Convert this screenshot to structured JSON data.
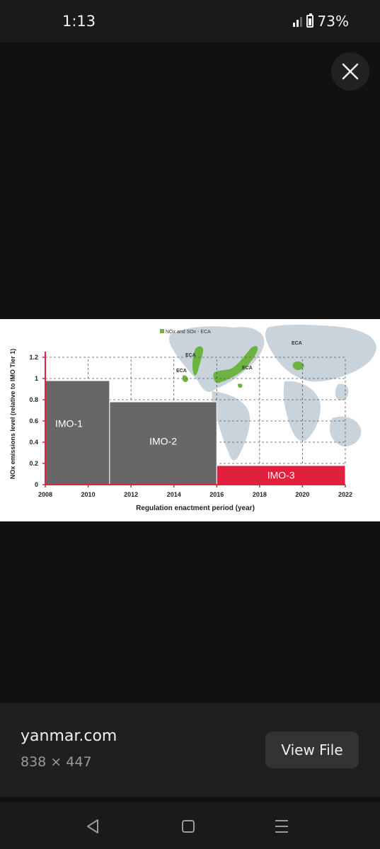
{
  "status_bar": {
    "time": "1:13",
    "battery_percent": "73%",
    "battery_level": 0.73
  },
  "viewer": {
    "close_icon": "close-icon",
    "source": "yanmar.com",
    "dimensions": "838 × 447",
    "view_file_label": "View File"
  },
  "chart_data": {
    "type": "bar",
    "xlabel": "Regulation enactment period (year)",
    "ylabel": "NOx emissions level (relative to IMO Tier 1)",
    "xlim": [
      2008,
      2022
    ],
    "ylim": [
      0,
      1.2
    ],
    "x_ticks": [
      "2008",
      "2010",
      "2012",
      "2014",
      "2016",
      "2018",
      "2020",
      "2022"
    ],
    "y_ticks": [
      "0",
      "0.2",
      "0.4",
      "0.6",
      "0.8",
      "1",
      "1.2"
    ],
    "grid": "dashed",
    "bars": [
      {
        "label": "IMO-1",
        "x_start": 2008,
        "x_end": 2011,
        "value": 0.98,
        "color": "#676767"
      },
      {
        "label": "IMO-2",
        "x_start": 2011,
        "x_end": 2016,
        "value": 0.78,
        "color": "#676767"
      },
      {
        "label": "IMO-3",
        "x_start": 2016,
        "x_end": 2022,
        "value": 0.18,
        "color": "#e0203c"
      }
    ],
    "map_legend": "NOx and SOx - ECA",
    "map_labels": [
      "ECA",
      "ECA",
      "ECA",
      "ECA"
    ],
    "colors": {
      "axis": "#d9263c",
      "eca": "#6db33f",
      "land": "#c9d3dc"
    }
  },
  "nav": {
    "back_icon": "back-triangle-icon",
    "home_icon": "home-square-icon",
    "recents_icon": "recents-lines-icon"
  }
}
